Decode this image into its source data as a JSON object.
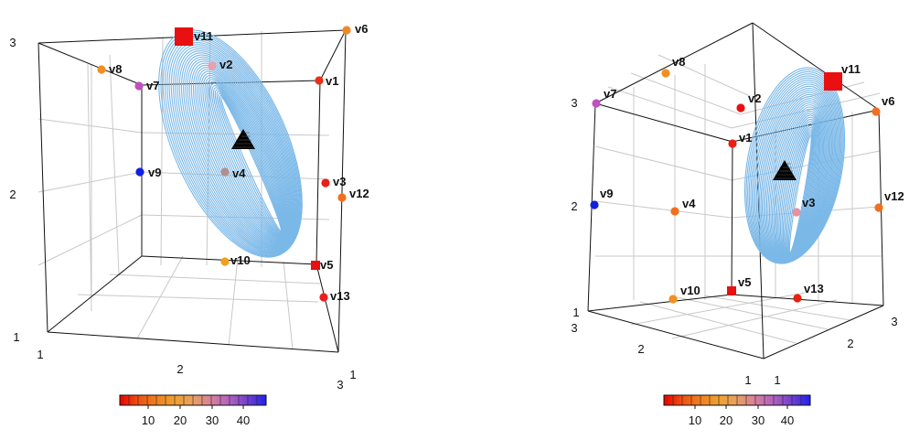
{
  "chart_data": [
    {
      "type": "scatter3d",
      "panel": "left",
      "axes": {
        "x": {
          "ticks": [
            "1",
            "2",
            "3"
          ]
        },
        "y": {
          "ticks": [
            "1"
          ]
        },
        "z": {
          "ticks": [
            "1",
            "2",
            "3"
          ]
        }
      },
      "grid": true,
      "box": true,
      "points": [
        {
          "name": "v1",
          "color": "#e8301a",
          "shape": "circle"
        },
        {
          "name": "v2",
          "color": "#e8a0b0",
          "shape": "circle"
        },
        {
          "name": "v3",
          "color": "#e8201a",
          "shape": "circle"
        },
        {
          "name": "v4",
          "color": "#b09090",
          "shape": "circle"
        },
        {
          "name": "v5",
          "color": "#e81010",
          "shape": "square"
        },
        {
          "name": "v6",
          "color": "#f08a20",
          "shape": "circle"
        },
        {
          "name": "v7",
          "color": "#c050c0",
          "shape": "circle"
        },
        {
          "name": "v8",
          "color": "#f09020",
          "shape": "circle"
        },
        {
          "name": "v9",
          "color": "#1020e0",
          "shape": "circle"
        },
        {
          "name": "v10",
          "color": "#f0a020",
          "shape": "circle"
        },
        {
          "name": "v11",
          "color": "#e81010",
          "shape": "square"
        },
        {
          "name": "v12",
          "color": "#f07020",
          "shape": "circle"
        },
        {
          "name": "v13",
          "color": "#e82020",
          "shape": "circle"
        }
      ],
      "ellipsoid_color": "#7ab8e8",
      "centroid_marker": "triangle",
      "colorbar": {
        "ticks": [
          10,
          20,
          30,
          40
        ],
        "colors": [
          "#e80000",
          "#f05010",
          "#f08020",
          "#f0a030",
          "#e8a060",
          "#d880a0",
          "#b060c0",
          "#7040d0",
          "#2020f0"
        ]
      }
    },
    {
      "type": "scatter3d",
      "panel": "right",
      "axes": {
        "x": {
          "ticks": [
            "1",
            "2",
            "3"
          ]
        },
        "y": {
          "ticks": [
            "1",
            "2",
            "3"
          ]
        },
        "z": {
          "ticks": [
            "1",
            "2",
            "3"
          ]
        }
      },
      "grid": true,
      "box": true,
      "points": [
        {
          "name": "v1",
          "color": "#e82010",
          "shape": "circle"
        },
        {
          "name": "v2",
          "color": "#e81010",
          "shape": "circle"
        },
        {
          "name": "v3",
          "color": "#e890a0",
          "shape": "circle"
        },
        {
          "name": "v4",
          "color": "#f07020",
          "shape": "circle"
        },
        {
          "name": "v5",
          "color": "#e81010",
          "shape": "square"
        },
        {
          "name": "v6",
          "color": "#f07020",
          "shape": "circle"
        },
        {
          "name": "v7",
          "color": "#c050c0",
          "shape": "circle"
        },
        {
          "name": "v8",
          "color": "#f09020",
          "shape": "circle"
        },
        {
          "name": "v9",
          "color": "#1020e0",
          "shape": "circle"
        },
        {
          "name": "v10",
          "color": "#f09020",
          "shape": "circle"
        },
        {
          "name": "v11",
          "color": "#e81010",
          "shape": "square"
        },
        {
          "name": "v12",
          "color": "#f07020",
          "shape": "circle"
        },
        {
          "name": "v13",
          "color": "#e82010",
          "shape": "circle"
        }
      ],
      "ellipsoid_color": "#7ab8e8",
      "centroid_marker": "triangle",
      "colorbar": {
        "ticks": [
          10,
          20,
          30,
          40
        ],
        "colors": [
          "#e80000",
          "#f05010",
          "#f08020",
          "#f0a030",
          "#e8a060",
          "#d880a0",
          "#b060c0",
          "#7040d0",
          "#2020f0"
        ]
      }
    }
  ]
}
